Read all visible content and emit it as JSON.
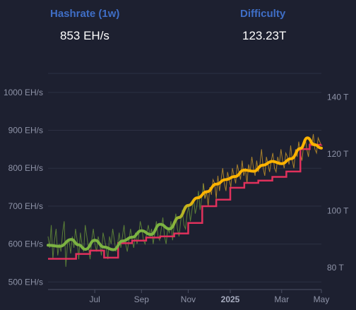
{
  "header": {
    "hashrate_title": "Hashrate (1w)",
    "hashrate_value": "853 EH/s",
    "difficulty_title": "Difficulty",
    "difficulty_value": "123.23T"
  },
  "colors": {
    "background": "#1d2030",
    "title": "#3f6ec6",
    "grid": "#2c3043",
    "tick": "#8e93a7",
    "difficulty": "#e0315c",
    "hashrate_early": "#7cb342",
    "hashrate_late": "#ffb300"
  },
  "chart_data": {
    "type": "line",
    "xlabel": "",
    "ylabel_left": "",
    "ylabel_right": "",
    "grid": true,
    "x_ticks": [
      "Jul",
      "Sep",
      "Nov",
      "2025",
      "Mar",
      "May"
    ],
    "y_left_ticks": [
      "500 EH/s",
      "600 EH/s",
      "700 EH/s",
      "800 EH/s",
      "900 EH/s",
      "1000 EH/s"
    ],
    "y_left_range": [
      480,
      1050
    ],
    "y_right_ticks": [
      "80 T",
      "100 T",
      "120 T",
      "140 T"
    ],
    "y_right_range": [
      72.3,
      148.3
    ],
    "x_range": [
      0,
      11.7
    ],
    "x_tick_positions": [
      2,
      4,
      6,
      7.8,
      10,
      11.7
    ],
    "series": [
      {
        "key": "daily",
        "axis": "left",
        "kind": "daily",
        "values": [
          620,
          590,
          650,
          560,
          610,
          640,
          570,
          600,
          580,
          630,
          660,
          540,
          600,
          610,
          575,
          620,
          590,
          640,
          610,
          560,
          630,
          600,
          580,
          650,
          620,
          590,
          560,
          610,
          640,
          600,
          580,
          620,
          600,
          570,
          630,
          610,
          590,
          560,
          620,
          600,
          640,
          610,
          580,
          600,
          630,
          590,
          620,
          650,
          600,
          580,
          610,
          640,
          610,
          590,
          630,
          600,
          620,
          660,
          640,
          610,
          600,
          630,
          650,
          620,
          640,
          600,
          630,
          660,
          620,
          610,
          640,
          670,
          620,
          600,
          640,
          630,
          660,
          610,
          650,
          680,
          640,
          620,
          660,
          690,
          650,
          640,
          680,
          700,
          660,
          690,
          720,
          680,
          700,
          740,
          690,
          720,
          760,
          720,
          740,
          700,
          750,
          730,
          770,
          760,
          720,
          780,
          740,
          770,
          800,
          760,
          740,
          790,
          770,
          750,
          800,
          780,
          760,
          810,
          790,
          770,
          820,
          780,
          800,
          760,
          810,
          790,
          830,
          800,
          780,
          820,
          790,
          810,
          850,
          800,
          780,
          830,
          810,
          790,
          820,
          840,
          800,
          790,
          830,
          810,
          850,
          820,
          800,
          840,
          830,
          810,
          860,
          820,
          800,
          850,
          830,
          870,
          840,
          820,
          860,
          880,
          850,
          830,
          870,
          860,
          890,
          850,
          840,
          880,
          870,
          860
        ]
      },
      {
        "name": "Hashrate (1w)",
        "key": "hashrate",
        "axis": "left",
        "kind": "smooth",
        "x": [
          0,
          0.5,
          1.0,
          1.3,
          1.6,
          2.0,
          2.4,
          2.8,
          3.2,
          3.6,
          4.0,
          4.4,
          4.8,
          5.2,
          5.6,
          6.0,
          6.4,
          6.8,
          7.2,
          7.6,
          8.0,
          8.4,
          8.8,
          9.2,
          9.6,
          10.0,
          10.4,
          10.8,
          11.1,
          11.4,
          11.7
        ],
        "values": [
          597,
          594,
          612,
          598,
          586,
          610,
          592,
          585,
          608,
          618,
          635,
          625,
          652,
          640,
          670,
          702,
          722,
          738,
          758,
          770,
          778,
          795,
          792,
          808,
          818,
          812,
          825,
          852,
          880,
          862,
          853
        ]
      },
      {
        "name": "Difficulty",
        "key": "difficulty",
        "axis": "right",
        "kind": "step",
        "x": [
          0,
          0.6,
          1.2,
          1.8,
          2.4,
          3.0,
          3.6,
          4.2,
          4.8,
          5.4,
          6.0,
          6.6,
          7.2,
          7.8,
          8.4,
          9.0,
          9.6,
          10.2,
          10.8,
          11.2,
          11.7
        ],
        "values": [
          83.1,
          83.1,
          84.8,
          86.0,
          83.5,
          88.6,
          89.5,
          90.6,
          91.0,
          92.0,
          95.7,
          101.6,
          103.9,
          108.1,
          109.8,
          110.6,
          111.9,
          113.8,
          121.7,
          123.2,
          123.23
        ]
      }
    ]
  }
}
